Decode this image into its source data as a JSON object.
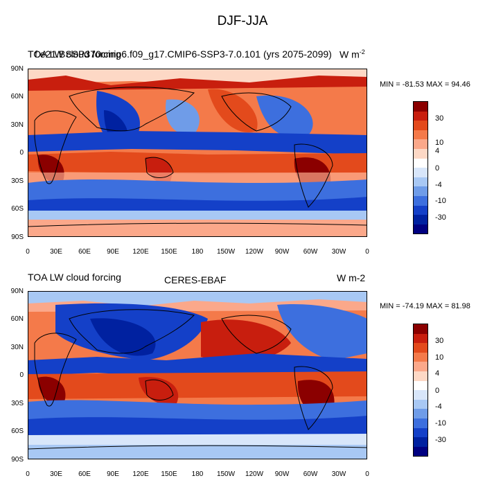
{
  "figure": {
    "title": "DJF-JJA"
  },
  "panels": [
    {
      "left_title": "TOA LW cloud forcing",
      "center_title": "f.e21.BSSP370cmip6.f09_g17.CMIP6-SSP3-7.0.101 (yrs 2075-2099)",
      "units": "W m",
      "units_sup": "-2",
      "minmax": "MIN = -81.53   MAX =  94.46"
    },
    {
      "left_title": "TOA LW cloud forcing",
      "center_title": "CERES-EBAF",
      "units": "W m-2",
      "units_sup": "",
      "minmax": "MIN = -74.19   MAX =  81.98"
    }
  ],
  "axes": {
    "lat_labels": [
      "90N",
      "60N",
      "30N",
      "0",
      "30S",
      "60S",
      "90S"
    ],
    "lon_labels": [
      "0",
      "30E",
      "60E",
      "90E",
      "120E",
      "150E",
      "180",
      "150W",
      "120W",
      "90W",
      "60W",
      "30W",
      "0"
    ]
  },
  "colorbar": {
    "labels": [
      "30",
      "10",
      "4",
      "0",
      "-4",
      "-10",
      "-30"
    ],
    "colors": [
      "#8b0000",
      "#c81e0e",
      "#e34a1c",
      "#f47a4a",
      "#fba88a",
      "#fdd8c5",
      "#ffffff",
      "#d8e6fa",
      "#a8c8f4",
      "#6f9ce8",
      "#3d6fde",
      "#1440c8",
      "#0021a0",
      "#000080"
    ]
  },
  "chart_data": {
    "type": "map",
    "variable": "TOA LW cloud forcing",
    "season": "DJF-JJA",
    "projection": "cylindrical equidistant",
    "lon_range": [
      0,
      360
    ],
    "lat_range": [
      -90,
      90
    ],
    "contour_levels": [
      -40,
      -30,
      -20,
      -10,
      -7,
      -4,
      -2,
      0,
      2,
      4,
      7,
      10,
      20,
      30,
      40
    ],
    "panels": [
      {
        "title": "f.e21.BSSP370cmip6.f09_g17.CMIP6-SSP3-7.0.101 (yrs 2075-2099)",
        "min": -81.53,
        "max": 94.46
      },
      {
        "title": "CERES-EBAF",
        "min": -74.19,
        "max": 81.98
      }
    ]
  }
}
